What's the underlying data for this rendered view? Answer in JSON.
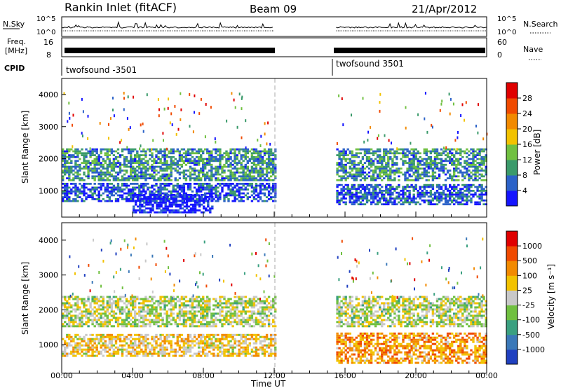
{
  "header": {
    "station": "Rankin Inlet (fitACF)",
    "beam": "Beam 09",
    "date": "21/Apr/2012"
  },
  "status_panels": {
    "noise": {
      "left_label": "N.Sky",
      "right_label": "N.Search",
      "left_ticks": [
        "10^5",
        "10^0"
      ],
      "right_ticks": [
        "10^5",
        "10^0"
      ]
    },
    "freq": {
      "left_label_1": "Freq.",
      "left_label_2": "[MHz]",
      "right_label": "Nave",
      "left_ticks": [
        "16",
        "8"
      ],
      "right_ticks": [
        "60",
        "0"
      ]
    },
    "cpid": {
      "label": "CPID",
      "segments": [
        "twofsound -3501",
        "twofsound 3501"
      ]
    }
  },
  "colorbar_power": {
    "label": "Power [dB]",
    "ticks": [
      "28",
      "24",
      "20",
      "16",
      "12",
      "8",
      "4"
    ],
    "colors": [
      "#1414ff",
      "#2b62c8",
      "#3a9a6a",
      "#70c040",
      "#f2c200",
      "#f28a00",
      "#f04a00",
      "#e00000"
    ]
  },
  "colorbar_velocity": {
    "label": "Velocity [m s⁻¹]",
    "ticks": [
      "1000",
      "500",
      "100",
      "25",
      "-25",
      "-100",
      "-500",
      "-1000"
    ],
    "colors": [
      "#2040c0",
      "#3a78b8",
      "#3aa080",
      "#70c040",
      "#c8c8c8",
      "#f2c200",
      "#f28a00",
      "#f04a00",
      "#e00000"
    ]
  },
  "chart_data": [
    {
      "type": "heatmap",
      "name": "power",
      "ylabel": "Slant Range [km]",
      "yticks": [
        "4000",
        "3000",
        "2000",
        "1000"
      ],
      "ylim": [
        180,
        4500
      ],
      "xlim": [
        0,
        24
      ],
      "data_gap_hours": [
        12,
        15.5
      ],
      "bands": [
        {
          "t0": 0.0,
          "t1": 12.0,
          "r0": 1300,
          "r1": 2300,
          "level": 2
        },
        {
          "t0": 0.0,
          "t1": 12.0,
          "r0": 650,
          "r1": 1250,
          "level": 1
        },
        {
          "t0": 4.0,
          "t1": 8.5,
          "r0": 300,
          "r1": 900,
          "level": 0
        },
        {
          "t0": 15.5,
          "t1": 24.0,
          "r0": 1300,
          "r1": 2300,
          "level": 2
        },
        {
          "t0": 15.5,
          "t1": 24.0,
          "r0": 550,
          "r1": 1200,
          "level": 1
        }
      ]
    },
    {
      "type": "heatmap",
      "name": "velocity",
      "ylabel": "Slant Range [km]",
      "yticks": [
        "4000",
        "3000",
        "2000",
        "1000"
      ],
      "ylim": [
        180,
        4500
      ],
      "xlim": [
        0,
        24
      ],
      "data_gap_hours": [
        12,
        15.5
      ],
      "bands": [
        {
          "t0": 0.0,
          "t1": 12.0,
          "r0": 1500,
          "r1": 2400,
          "level": 4
        },
        {
          "t0": 0.0,
          "t1": 12.0,
          "r0": 650,
          "r1": 1300,
          "level": 5
        },
        {
          "t0": 15.5,
          "t1": 24.0,
          "r0": 1500,
          "r1": 2400,
          "level": 4
        },
        {
          "t0": 15.5,
          "t1": 24.0,
          "r0": 450,
          "r1": 1300,
          "level": 6
        }
      ]
    }
  ],
  "x_axis": {
    "ticks": [
      "00:00",
      "04:00",
      "08:00",
      "12:00",
      "16:00",
      "20:00",
      "00:00"
    ],
    "label": "Time UT"
  }
}
